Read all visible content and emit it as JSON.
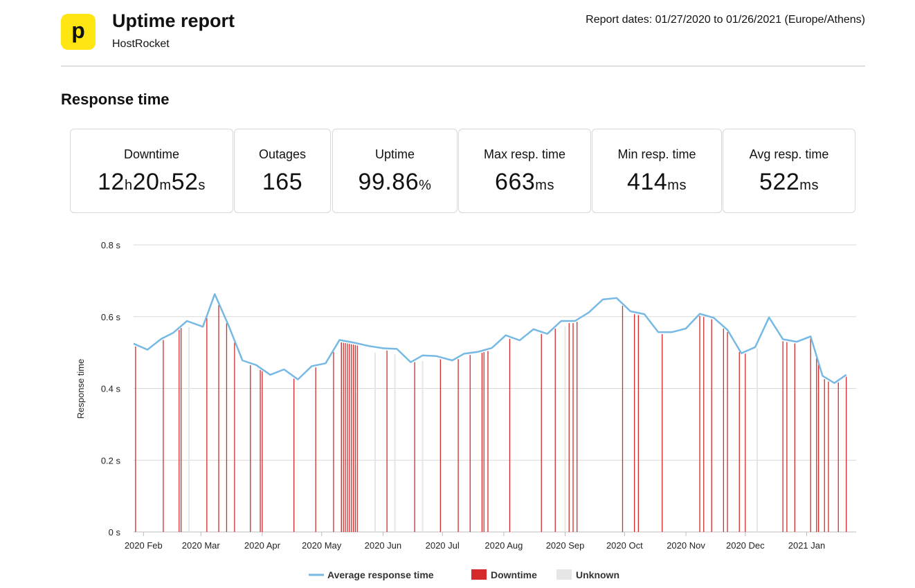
{
  "header": {
    "logo_letter": "p",
    "title": "Uptime report",
    "subtitle": "HostRocket",
    "report_dates": "Report dates: 01/27/2020 to 01/26/2021 (Europe/Athens)"
  },
  "section_title": "Response time",
  "stats": [
    {
      "label": "Downtime",
      "parts": [
        [
          "12",
          "h"
        ],
        [
          "20",
          "m"
        ],
        [
          "52",
          "s"
        ]
      ]
    },
    {
      "label": "Outages",
      "parts": [
        [
          "165",
          ""
        ]
      ]
    },
    {
      "label": "Uptime",
      "parts": [
        [
          "99.86",
          "%"
        ]
      ]
    },
    {
      "label": "Max resp. time",
      "parts": [
        [
          "663",
          "ms"
        ]
      ]
    },
    {
      "label": "Min resp. time",
      "parts": [
        [
          "414",
          "ms"
        ]
      ]
    },
    {
      "label": "Avg resp. time",
      "parts": [
        [
          "522",
          "ms"
        ]
      ]
    }
  ],
  "colors": {
    "line": "#76b9e4",
    "downtime": "#d42a2a",
    "unknown": "#e6e6e6",
    "grid": "#d8d8d8",
    "logo": "#ffe612"
  },
  "chart_data": {
    "type": "line",
    "ylabel": "Response time",
    "ylim": [
      0,
      0.8
    ],
    "yticks": [
      0,
      0.2,
      0.4,
      0.6,
      0.8
    ],
    "ytick_labels": [
      "0 s",
      "0.2 s",
      "0.4 s",
      "0.6 s",
      "0.8 s"
    ],
    "xlim": [
      "2020-01-27",
      "2021-01-26"
    ],
    "xticks": [
      {
        "date": "2020-02-01",
        "label": "2020 Feb"
      },
      {
        "date": "2020-03-01",
        "label": "2020 Mar"
      },
      {
        "date": "2020-04-01",
        "label": "2020 Apr"
      },
      {
        "date": "2020-05-01",
        "label": "2020 May"
      },
      {
        "date": "2020-06-01",
        "label": "2020 Jun"
      },
      {
        "date": "2020-07-01",
        "label": "2020 Jul"
      },
      {
        "date": "2020-08-01",
        "label": "2020 Aug"
      },
      {
        "date": "2020-09-01",
        "label": "2020 Sep"
      },
      {
        "date": "2020-10-01",
        "label": "2020 Oct"
      },
      {
        "date": "2020-11-01",
        "label": "2020 Nov"
      },
      {
        "date": "2020-12-01",
        "label": "2020 Dec"
      },
      {
        "date": "2021-01-01",
        "label": "2021 Jan"
      }
    ],
    "legend": [
      "Average response time",
      "Downtime",
      "Unknown"
    ],
    "legend_position": "bottom",
    "series": [
      {
        "name": "Average response time",
        "points": [
          [
            "2020-01-27",
            0.525
          ],
          [
            "2020-02-03",
            0.508
          ],
          [
            "2020-02-10",
            0.538
          ],
          [
            "2020-02-16",
            0.555
          ],
          [
            "2020-02-23",
            0.588
          ],
          [
            "2020-03-02",
            0.572
          ],
          [
            "2020-03-08",
            0.663
          ],
          [
            "2020-03-15",
            0.575
          ],
          [
            "2020-03-22",
            0.478
          ],
          [
            "2020-03-29",
            0.465
          ],
          [
            "2020-04-05",
            0.438
          ],
          [
            "2020-04-12",
            0.453
          ],
          [
            "2020-04-19",
            0.425
          ],
          [
            "2020-04-26",
            0.462
          ],
          [
            "2020-05-03",
            0.47
          ],
          [
            "2020-05-10",
            0.535
          ],
          [
            "2020-05-17",
            0.528
          ],
          [
            "2020-05-25",
            0.518
          ],
          [
            "2020-06-01",
            0.512
          ],
          [
            "2020-06-08",
            0.51
          ],
          [
            "2020-06-15",
            0.473
          ],
          [
            "2020-06-21",
            0.492
          ],
          [
            "2020-06-28",
            0.49
          ],
          [
            "2020-07-06",
            0.478
          ],
          [
            "2020-07-12",
            0.497
          ],
          [
            "2020-07-19",
            0.502
          ],
          [
            "2020-07-26",
            0.513
          ],
          [
            "2020-08-02",
            0.548
          ],
          [
            "2020-08-09",
            0.534
          ],
          [
            "2020-08-16",
            0.565
          ],
          [
            "2020-08-23",
            0.552
          ],
          [
            "2020-08-30",
            0.588
          ],
          [
            "2020-09-06",
            0.588
          ],
          [
            "2020-09-13",
            0.612
          ],
          [
            "2020-09-20",
            0.648
          ],
          [
            "2020-09-27",
            0.652
          ],
          [
            "2020-10-04",
            0.615
          ],
          [
            "2020-10-11",
            0.607
          ],
          [
            "2020-10-18",
            0.557
          ],
          [
            "2020-10-25",
            0.557
          ],
          [
            "2020-11-01",
            0.567
          ],
          [
            "2020-11-08",
            0.608
          ],
          [
            "2020-11-15",
            0.597
          ],
          [
            "2020-11-22",
            0.563
          ],
          [
            "2020-11-29",
            0.498
          ],
          [
            "2020-12-06",
            0.515
          ],
          [
            "2020-12-13",
            0.598
          ],
          [
            "2020-12-20",
            0.537
          ],
          [
            "2020-12-27",
            0.53
          ],
          [
            "2021-01-03",
            0.545
          ],
          [
            "2021-01-09",
            0.435
          ],
          [
            "2021-01-15",
            0.415
          ],
          [
            "2021-01-21",
            0.438
          ]
        ]
      },
      {
        "name": "Downtime",
        "dates": [
          "2020-01-28",
          "2020-02-11",
          "2020-02-19",
          "2020-02-20",
          "2020-03-04",
          "2020-03-10",
          "2020-03-14",
          "2020-03-18",
          "2020-03-26",
          "2020-03-31",
          "2020-04-01",
          "2020-04-17",
          "2020-04-28",
          "2020-05-07",
          "2020-05-11",
          "2020-05-11",
          "2020-05-12",
          "2020-05-13",
          "2020-05-14",
          "2020-05-15",
          "2020-05-16",
          "2020-05-17",
          "2020-05-18",
          "2020-05-19",
          "2020-06-03",
          "2020-06-17",
          "2020-06-30",
          "2020-07-09",
          "2020-07-15",
          "2020-07-21",
          "2020-07-22",
          "2020-07-24",
          "2020-08-04",
          "2020-08-20",
          "2020-08-27",
          "2020-09-03",
          "2020-09-05",
          "2020-09-07",
          "2020-09-30",
          "2020-10-06",
          "2020-10-08",
          "2020-10-20",
          "2020-11-08",
          "2020-11-10",
          "2020-11-14",
          "2020-11-20",
          "2020-11-22",
          "2020-11-28",
          "2020-12-01",
          "2020-12-20",
          "2020-12-22",
          "2020-12-26",
          "2021-01-03",
          "2021-01-06",
          "2021-01-07",
          "2021-01-10",
          "2021-01-12",
          "2021-01-17",
          "2021-01-21"
        ]
      },
      {
        "name": "Unknown",
        "dates": [
          "2020-02-24",
          "2020-05-28",
          "2020-06-07",
          "2020-06-21",
          "2020-09-01",
          "2020-12-07"
        ]
      }
    ]
  }
}
